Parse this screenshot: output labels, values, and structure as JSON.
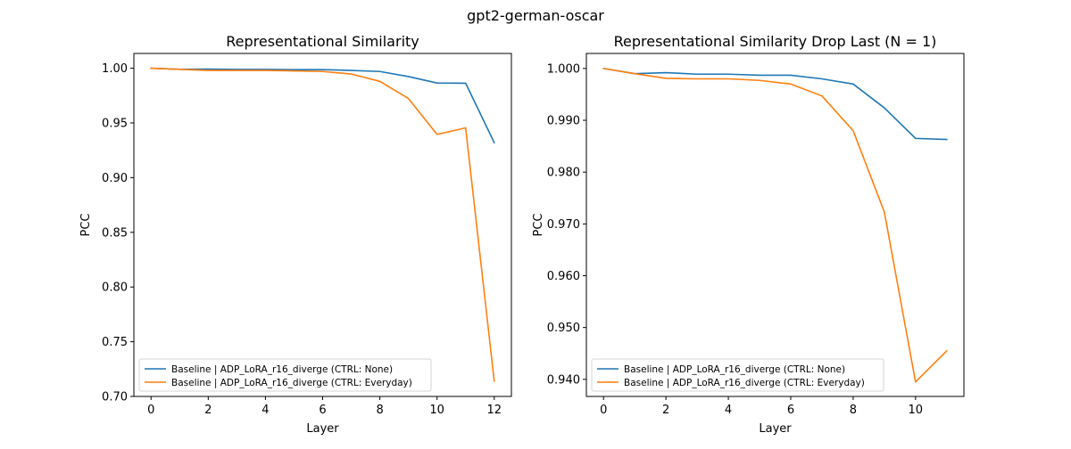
{
  "suptitle": "gpt2-german-oscar",
  "chart_data": [
    {
      "type": "line",
      "title": "Representational Similarity",
      "xlabel": "Layer",
      "ylabel": "PCC",
      "xlim": [
        -0.6,
        12.6
      ],
      "ylim": [
        0.7,
        1.0135
      ],
      "xticks": [
        0,
        2,
        4,
        6,
        8,
        10,
        12
      ],
      "yticks": [
        0.7,
        0.75,
        0.8,
        0.85,
        0.9,
        0.95,
        1.0
      ],
      "ytick_labels": [
        "0.70",
        "0.75",
        "0.80",
        "0.85",
        "0.90",
        "0.95",
        "1.00"
      ],
      "legend_loc": "lower-left",
      "grid": false,
      "x": [
        0,
        1,
        2,
        3,
        4,
        5,
        6,
        7,
        8,
        9,
        10,
        11,
        12
      ],
      "series": [
        {
          "name": "Baseline | ADP_LoRA_r16_diverge (CTRL: None)",
          "color": "#1f77b4",
          "values": [
            1.0,
            0.999,
            0.9992,
            0.9989,
            0.9989,
            0.9987,
            0.9987,
            0.998,
            0.997,
            0.9924,
            0.9865,
            0.9863,
            0.932
          ]
        },
        {
          "name": "Baseline | ADP_LoRA_r16_diverge (CTRL: Everyday)",
          "color": "#ff7f0e",
          "values": [
            1.0,
            0.999,
            0.998,
            0.998,
            0.998,
            0.9976,
            0.997,
            0.9947,
            0.988,
            0.9723,
            0.9395,
            0.9455,
            0.714
          ]
        }
      ]
    },
    {
      "type": "line",
      "title": "Representational Similarity Drop Last (N = 1)",
      "xlabel": "Layer",
      "ylabel": "PCC",
      "xlim": [
        -0.55,
        11.55
      ],
      "ylim": [
        0.9367,
        1.0029
      ],
      "xticks": [
        0,
        2,
        4,
        6,
        8,
        10
      ],
      "yticks": [
        0.94,
        0.95,
        0.96,
        0.97,
        0.98,
        0.99,
        1.0
      ],
      "ytick_labels": [
        "0.940",
        "0.950",
        "0.960",
        "0.970",
        "0.980",
        "0.990",
        "1.000"
      ],
      "legend_loc": "lower-left",
      "grid": false,
      "x": [
        0,
        1,
        2,
        3,
        4,
        5,
        6,
        7,
        8,
        9,
        10,
        11
      ],
      "series": [
        {
          "name": "Baseline | ADP_LoRA_r16_diverge (CTRL: None)",
          "color": "#1f77b4",
          "values": [
            1.0,
            0.999,
            0.9992,
            0.9989,
            0.9989,
            0.9987,
            0.9987,
            0.998,
            0.997,
            0.9924,
            0.9865,
            0.9863
          ]
        },
        {
          "name": "Baseline | ADP_LoRA_r16_diverge (CTRL: Everyday)",
          "color": "#ff7f0e",
          "values": [
            1.0,
            0.999,
            0.9981,
            0.998,
            0.998,
            0.9977,
            0.997,
            0.9947,
            0.988,
            0.9723,
            0.9395,
            0.9455
          ]
        }
      ]
    }
  ]
}
